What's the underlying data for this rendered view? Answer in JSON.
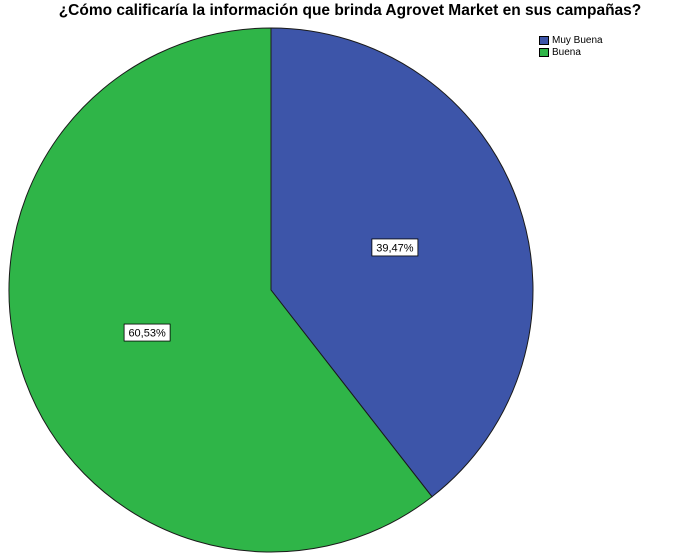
{
  "chart_data": {
    "type": "pie",
    "title": "¿Cómo calificaría la información que brinda Agrovet Market en sus campañas?",
    "categories": [
      "Muy Buena",
      "Buena"
    ],
    "values": [
      39.47,
      60.53
    ],
    "data_labels": [
      "39,47%",
      "60,53%"
    ],
    "colors": [
      "#3d55a9",
      "#2fb548"
    ],
    "start": "top, clockwise",
    "legend": [
      "Muy Buena",
      "Buena"
    ],
    "legend_position": "top-right"
  }
}
